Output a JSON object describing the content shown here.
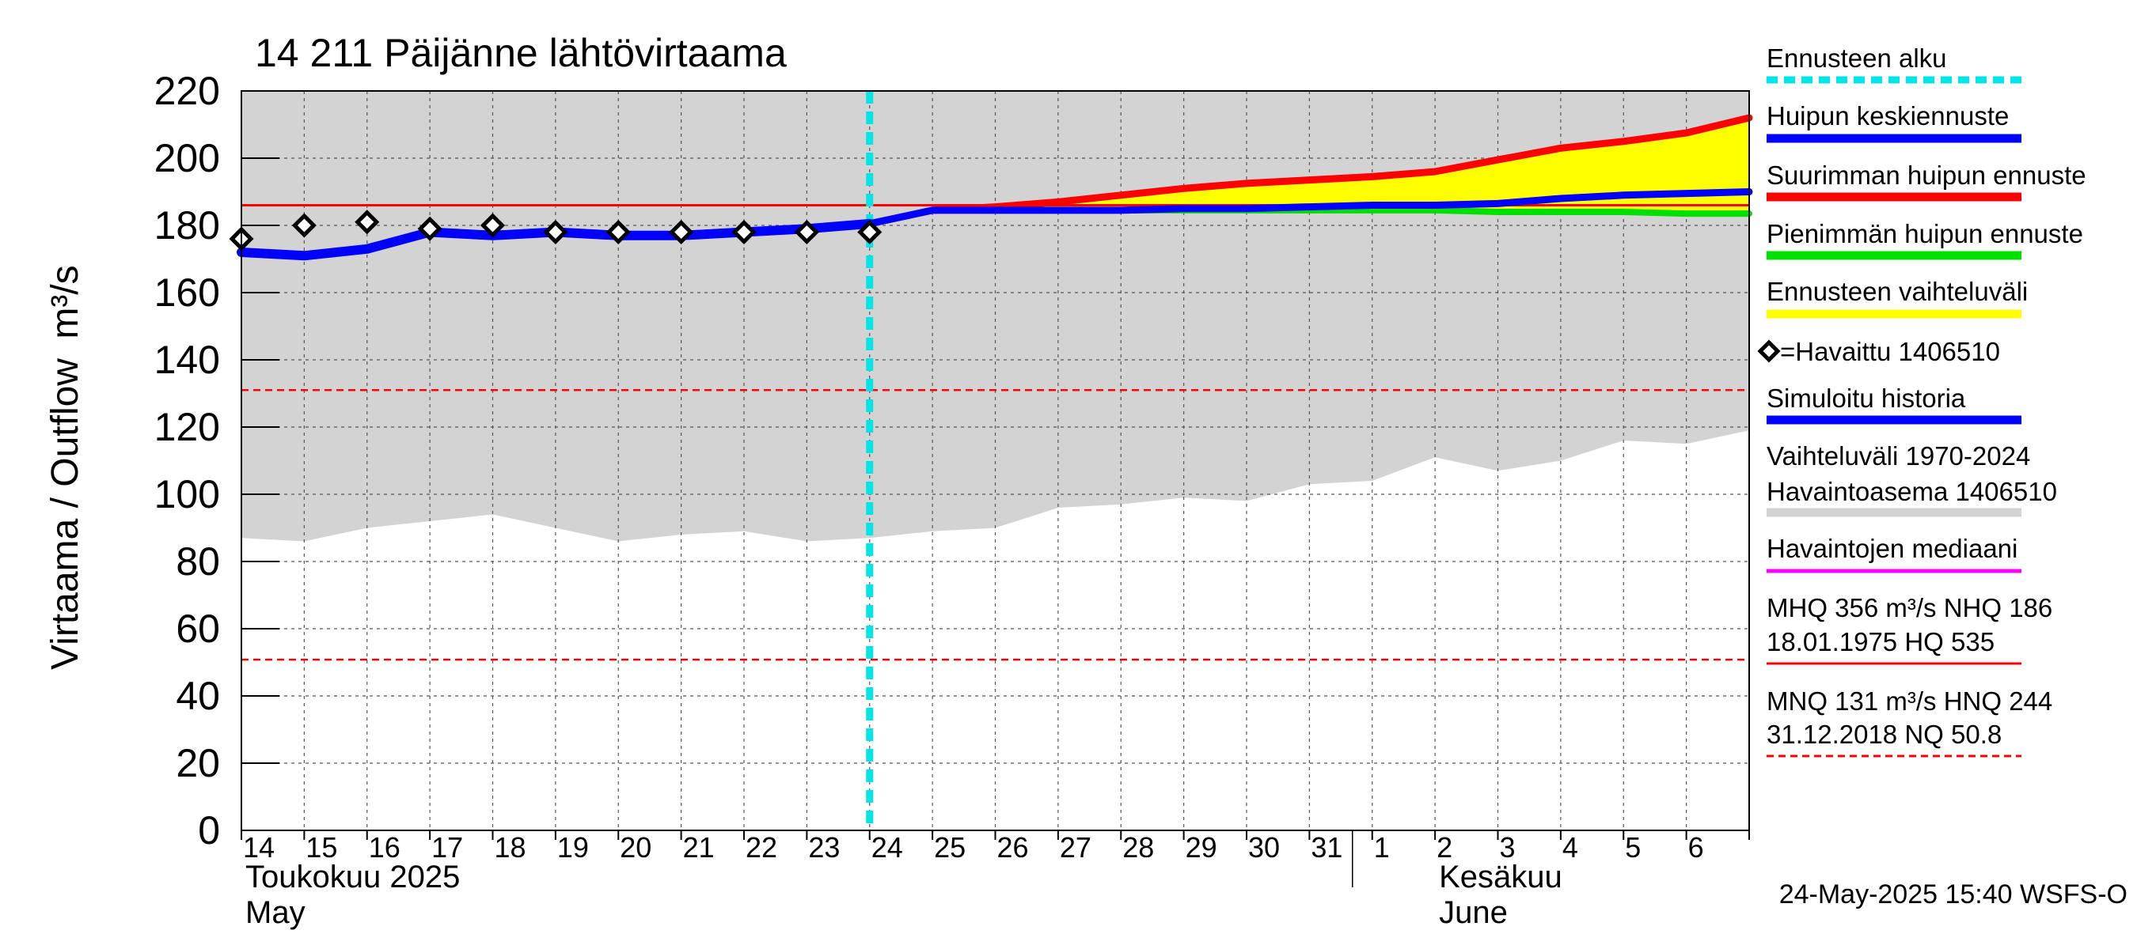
{
  "chart_data": {
    "type": "line",
    "title": "14 211 Päijänne lähtövirtaama",
    "ylabel_left": "Virtaama / Outflow",
    "ylabel_unit": "m³/s",
    "ylim": [
      0,
      220
    ],
    "yticks": [
      0,
      20,
      40,
      60,
      80,
      100,
      120,
      140,
      160,
      180,
      200,
      220
    ],
    "x_start": "2025-05-14",
    "x_end": "2025-06-07",
    "day_labels": [
      "14",
      "15",
      "16",
      "17",
      "18",
      "19",
      "20",
      "21",
      "22",
      "23",
      "24",
      "25",
      "26",
      "27",
      "28",
      "29",
      "30",
      "31",
      "1",
      "2",
      "3",
      "4",
      "5",
      "6"
    ],
    "month_labels": [
      {
        "line1": "Toukokuu  2025",
        "line2": "May",
        "at_day": 0
      },
      {
        "line1": "Kesäkuu",
        "line2": "June",
        "at_day": 19
      }
    ],
    "forecast_start_day": 10,
    "history_range": {
      "name": "Vaihteluväli 1970-2024 Havaintoasema 1406510",
      "color": "#d3d3d3",
      "x": [
        0,
        1,
        2,
        3,
        4,
        5,
        6,
        7,
        8,
        9,
        10,
        11,
        12,
        13,
        14,
        15,
        16,
        17,
        18,
        19,
        20,
        21,
        22,
        23,
        24
      ],
      "lower": [
        87,
        86,
        90,
        92,
        94,
        90,
        86,
        88,
        89,
        86,
        87,
        89,
        90,
        96,
        97,
        99,
        98,
        103,
        104,
        111,
        107,
        110,
        116,
        115,
        119
      ],
      "upper": [
        220,
        220,
        220,
        220,
        220,
        220,
        220,
        220,
        220,
        220,
        220,
        220,
        220,
        220,
        220,
        220,
        220,
        220,
        220,
        220,
        220,
        220,
        220,
        220,
        220
      ]
    },
    "series": [
      {
        "name": "Simuloitu historia",
        "color": "#0000ff",
        "x": [
          0,
          1,
          2,
          3,
          4,
          5,
          6,
          7,
          8,
          9,
          10
        ],
        "values": [
          172,
          171,
          173,
          178,
          177,
          178,
          177,
          177,
          178,
          179,
          180.5
        ]
      },
      {
        "name": "Suurimman huipun ennuste",
        "color": "#ff0000",
        "x": [
          10,
          11,
          12,
          13,
          14,
          15,
          16,
          17,
          18,
          19,
          20,
          21,
          22,
          23,
          24
        ],
        "values": [
          180.5,
          184.5,
          185.5,
          187,
          189,
          191,
          192.5,
          193.5,
          194.5,
          196,
          199.5,
          203,
          205,
          207.5,
          212
        ]
      },
      {
        "name": "Pienimmän huipun ennuste",
        "color": "#00e000",
        "x": [
          10,
          11,
          12,
          13,
          14,
          15,
          16,
          17,
          18,
          19,
          20,
          21,
          22,
          23,
          24
        ],
        "values": [
          180.5,
          184.5,
          184.5,
          184.5,
          184.5,
          184.5,
          184.5,
          184.5,
          184.5,
          184.5,
          184,
          184,
          184,
          183.5,
          183.5
        ]
      },
      {
        "name": "Huipun keskiennuste",
        "color": "#0000ff",
        "x": [
          10,
          11,
          12,
          13,
          14,
          15,
          16,
          17,
          18,
          19,
          20,
          21,
          22,
          23,
          24
        ],
        "values": [
          180.5,
          184.5,
          184.5,
          184.5,
          184.5,
          185,
          185,
          185.5,
          186,
          186,
          186.5,
          188,
          189,
          189.5,
          190
        ]
      }
    ],
    "observed": {
      "name": "=Havaittu 1406510",
      "x": [
        0,
        1,
        2,
        3,
        4,
        5,
        6,
        7,
        8,
        9,
        10
      ],
      "values": [
        176,
        180,
        181,
        179,
        180,
        178,
        178,
        178,
        178,
        178,
        178
      ]
    },
    "hlines": [
      {
        "name": "NHQ",
        "value": 186,
        "color": "#ff0000",
        "dashed": false
      },
      {
        "name": "MNQ",
        "value": 131,
        "color": "#ff0000",
        "dashed": true
      },
      {
        "name": "NQ",
        "value": 50.8,
        "color": "#ff0000",
        "dashed": true
      }
    ],
    "legend": {
      "forecast_start": "Ennusteen alku",
      "mean_peak": "Huipun keskiennuste",
      "max_peak": "Suurimman huipun ennuste",
      "min_peak": "Pienimmän huipun ennuste",
      "forecast_range": "Ennusteen vaihteluväli",
      "observed": "=Havaittu 1406510",
      "simulated": "Simuloitu historia",
      "history_line1": "Vaihteluväli 1970-2024",
      "history_line2": " Havaintoasema 1406510",
      "median": "Havaintojen mediaani",
      "mhq_line1": "MHQ  356 m³/s NHQ  186",
      "mhq_line2": "18.01.1975 HQ  535",
      "mnq_line1": "MNQ  131 m³/s HNQ  244",
      "mnq_line2": "31.12.2018 NQ 50.8"
    },
    "colors": {
      "forecast_start": "#00e5e5",
      "mean_peak": "#0000ff",
      "max_peak": "#ff0000",
      "min_peak": "#00e000",
      "forecast_range": "#ffff00",
      "simulated": "#0000ff",
      "history_range": "#d3d3d3",
      "median": "#ff00ff",
      "hq": "#ff0000"
    },
    "timestamp": "24-May-2025 15:40 WSFS-O"
  }
}
